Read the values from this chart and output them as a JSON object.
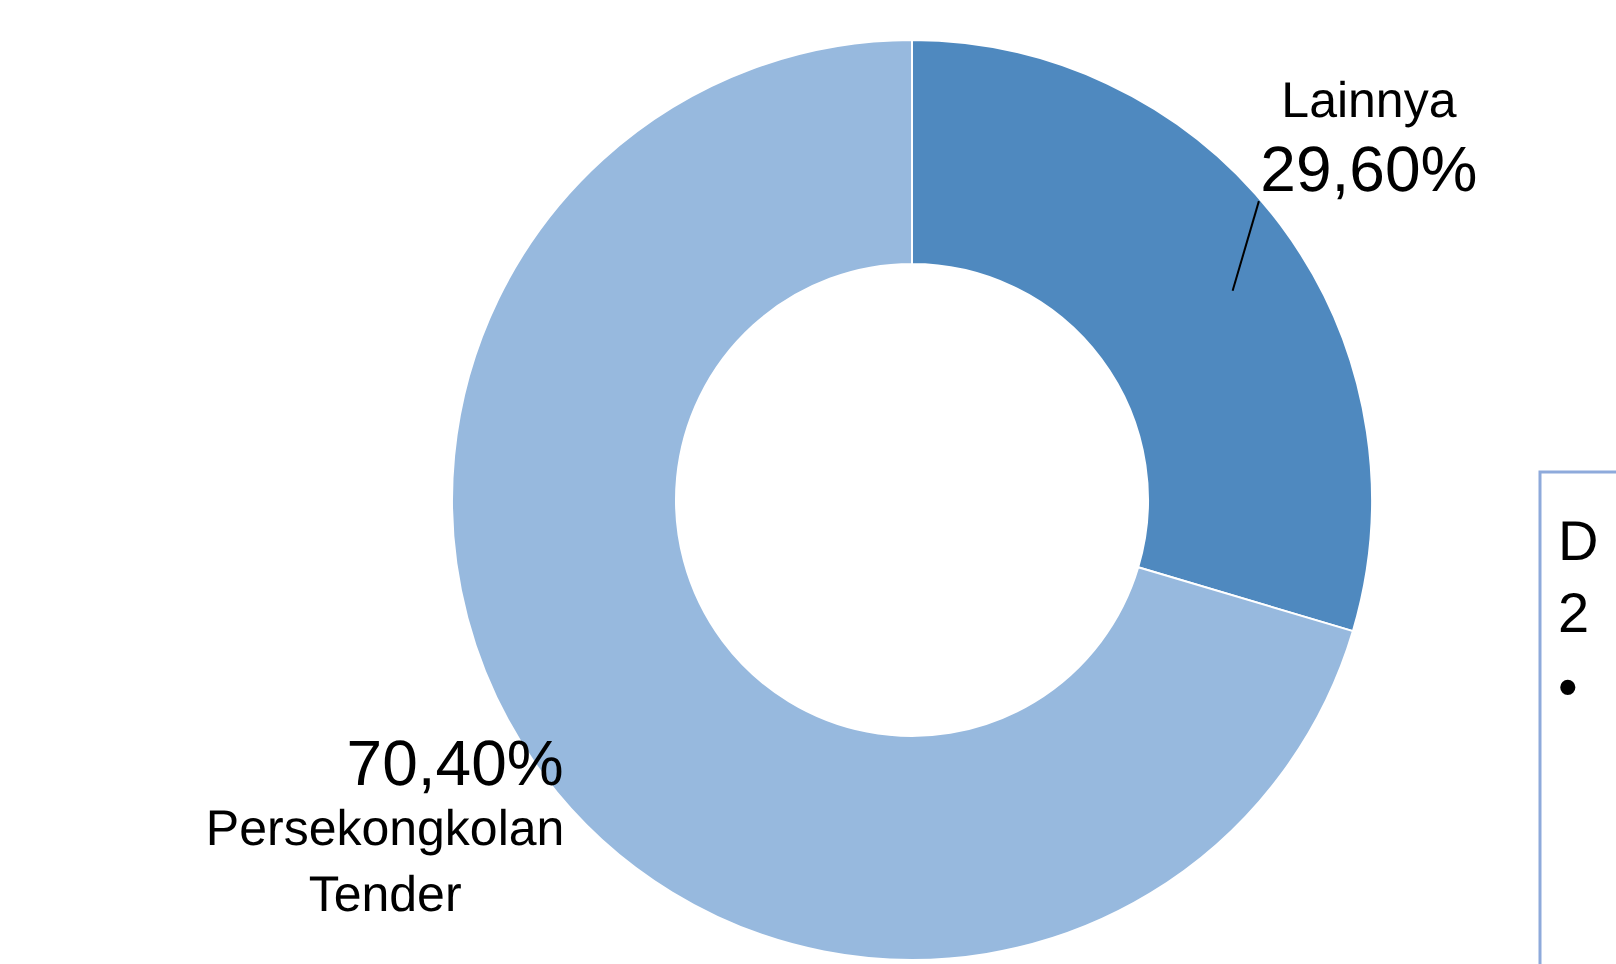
{
  "chart_data": {
    "type": "donut",
    "categories": [
      "Lainnya",
      "Persekongkolan Tender"
    ],
    "values": [
      29.6,
      70.4
    ],
    "value_labels": [
      "29,60%",
      "70,40%"
    ],
    "colors": [
      "#4f89bf",
      "#97b9de"
    ],
    "annotations": [
      "D",
      "2",
      "•"
    ]
  }
}
